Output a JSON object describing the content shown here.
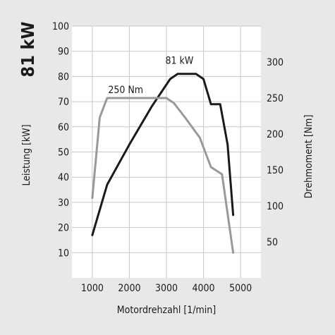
{
  "chart_data": {
    "type": "line",
    "headline": "81 kW",
    "xlabel": "Motordrehzahl [1/min]",
    "ylabel_left": "Leistung [kW]",
    "ylabel_right": "Drehmoment [Nm]",
    "xlim": [
      450,
      5550
    ],
    "ylim_left": [
      0,
      100
    ],
    "ylim_right": [
      0,
      350
    ],
    "x_ticks": [
      1000,
      2000,
      3000,
      4000,
      5000
    ],
    "y_ticks_left": [
      10,
      20,
      30,
      40,
      50,
      60,
      70,
      80,
      90,
      100
    ],
    "y_ticks_right": [
      50,
      100,
      150,
      200,
      250,
      300
    ],
    "grid": true,
    "series": [
      {
        "axis": "left",
        "color": "#1a1a1a",
        "points": [
          [
            1000,
            17
          ],
          [
            1400,
            37
          ],
          [
            2000,
            53
          ],
          [
            2600,
            68
          ],
          [
            3100,
            79
          ],
          [
            3300,
            81
          ],
          [
            3800,
            81
          ],
          [
            4000,
            79
          ],
          [
            4200,
            69
          ],
          [
            4450,
            69
          ],
          [
            4650,
            53
          ],
          [
            4800,
            25
          ]
        ]
      },
      {
        "axis": "right",
        "color": "#999999",
        "points": [
          [
            1000,
            111
          ],
          [
            1200,
            223
          ],
          [
            1400,
            250
          ],
          [
            3000,
            250
          ],
          [
            3200,
            243
          ],
          [
            3500,
            223
          ],
          [
            3900,
            195
          ],
          [
            4200,
            154
          ],
          [
            4500,
            144
          ],
          [
            4800,
            35
          ]
        ]
      }
    ],
    "annotations": [
      {
        "text": "81 kW",
        "x": 3350,
        "y": 85,
        "axis": "left"
      },
      {
        "text": "250 Nm",
        "x": 1900,
        "y": 257,
        "axis": "right"
      }
    ]
  }
}
